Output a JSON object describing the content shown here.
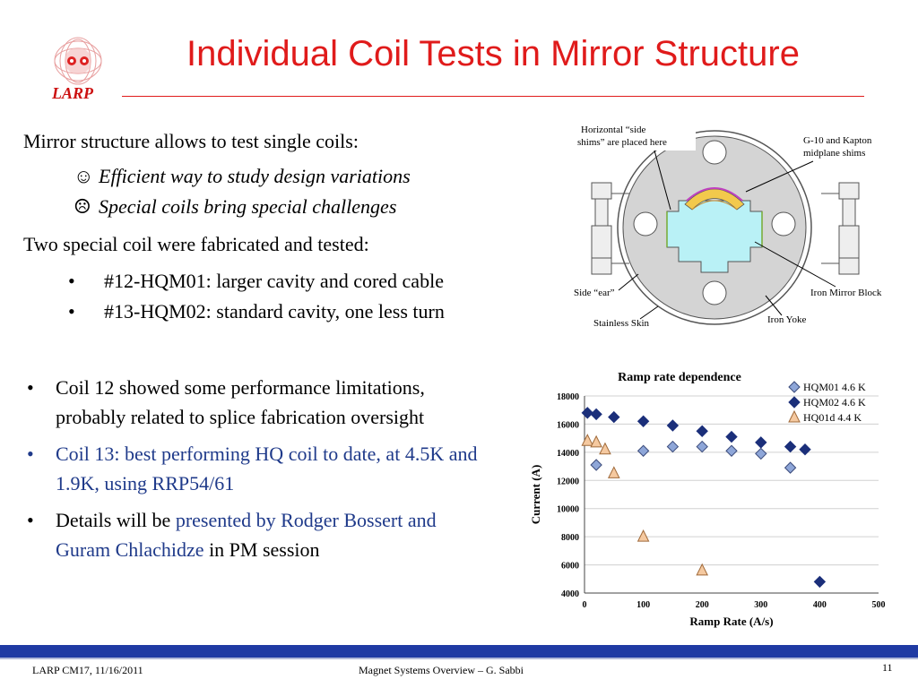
{
  "slide": {
    "title": "Individual Coil Tests in Mirror Structure",
    "logo_text": "LARP"
  },
  "intro": {
    "line1": "Mirror structure allows to test single coils:",
    "pros": [
      {
        "icon": "smiley-face-icon",
        "glyph": "☺",
        "text": "Efficient way to study design variations"
      },
      {
        "icon": "frowning-face-icon",
        "glyph": "☹",
        "text": "Special coils bring special challenges"
      }
    ],
    "line2": "Two special coil were fabricated and tested:",
    "coils": [
      "#12-HQM01: larger cavity and cored cable",
      "#13-HQM02: standard cavity, one less turn"
    ]
  },
  "findings": {
    "item1": "Coil 12 showed some performance limitations, probably related to splice fabrication oversight",
    "item2": "Coil 13: best performing HQ coil to date, at 4.5K and 1.9K, using RRP54/61",
    "item3_prefix": "Details will be ",
    "item3_highlight": "presented by Rodger Bossert and Guram Chlachidze",
    "item3_suffix": " in PM session"
  },
  "diagram": {
    "labels": {
      "side_shims_1": "Horizontal “side",
      "side_shims_2": "shims” are placed here",
      "g10_1": "G-10 and Kapton",
      "g10_2": "midplane shims",
      "side_ear": "Side “ear”",
      "iron_mirror": "Iron Mirror Block",
      "stainless": "Stainless Skin",
      "iron_yoke": "Iron Yoke"
    }
  },
  "chart_data": {
    "type": "scatter",
    "title": "Ramp rate dependence",
    "xlabel": "Ramp Rate (A/s)",
    "ylabel": "Current (A)",
    "xlim": [
      0,
      500
    ],
    "ylim": [
      4000,
      18000
    ],
    "x_ticks": [
      "0",
      "100",
      "200",
      "300",
      "400",
      "500"
    ],
    "y_ticks": [
      "4000",
      "6000",
      "8000",
      "10000",
      "12000",
      "14000",
      "16000",
      "18000"
    ],
    "grid": "horizontal",
    "legend": "top-right",
    "series": [
      {
        "name": "HQM01 4.6 K",
        "marker": "diamond-light",
        "color": "#8ea6d8",
        "points": [
          [
            20,
            13100
          ],
          [
            100,
            14100
          ],
          [
            150,
            14400
          ],
          [
            200,
            14400
          ],
          [
            250,
            14100
          ],
          [
            300,
            13900
          ],
          [
            350,
            12900
          ]
        ]
      },
      {
        "name": "HQM02 4.6 K",
        "marker": "diamond-dark",
        "color": "#1b2f7a",
        "points": [
          [
            5,
            16800
          ],
          [
            20,
            16700
          ],
          [
            50,
            16500
          ],
          [
            100,
            16200
          ],
          [
            150,
            15900
          ],
          [
            200,
            15500
          ],
          [
            250,
            15100
          ],
          [
            300,
            14700
          ],
          [
            350,
            14400
          ],
          [
            375,
            14200
          ],
          [
            400,
            4800
          ]
        ]
      },
      {
        "name": "HQ01d 4.4 K",
        "marker": "triangle",
        "color": "#f5c9a0",
        "points": [
          [
            5,
            14800
          ],
          [
            20,
            14700
          ],
          [
            35,
            14200
          ],
          [
            50,
            12500
          ],
          [
            100,
            8000
          ],
          [
            200,
            5600
          ]
        ]
      }
    ]
  },
  "footer": {
    "left": "LARP CM17, 11/16/2011",
    "center": "Magnet Systems Overview – G. Sabbi",
    "page": "11"
  }
}
